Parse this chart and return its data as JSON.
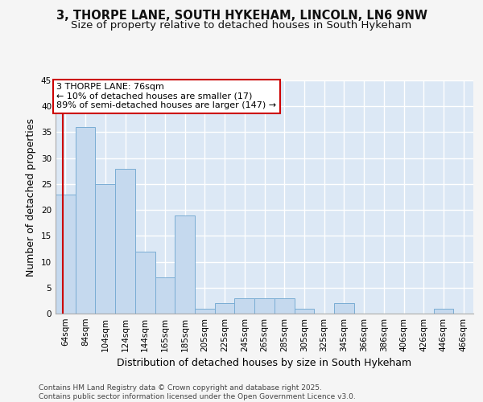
{
  "title": "3, THORPE LANE, SOUTH HYKEHAM, LINCOLN, LN6 9NW",
  "subtitle": "Size of property relative to detached houses in South Hykeham",
  "xlabel": "Distribution of detached houses by size in South Hykeham",
  "ylabel": "Number of detached properties",
  "categories": [
    "64sqm",
    "84sqm",
    "104sqm",
    "124sqm",
    "144sqm",
    "165sqm",
    "185sqm",
    "205sqm",
    "225sqm",
    "245sqm",
    "265sqm",
    "285sqm",
    "305sqm",
    "325sqm",
    "345sqm",
    "366sqm",
    "386sqm",
    "406sqm",
    "426sqm",
    "446sqm",
    "466sqm"
  ],
  "values": [
    23,
    36,
    25,
    28,
    12,
    7,
    19,
    1,
    2,
    3,
    3,
    3,
    1,
    0,
    2,
    0,
    0,
    0,
    0,
    1,
    0
  ],
  "bar_color": "#c5d9ee",
  "bar_edge_color": "#7aadd4",
  "background_color": "#dce8f5",
  "grid_color": "#ffffff",
  "annotation_line1": "3 THORPE LANE: 76sqm",
  "annotation_line2": "← 10% of detached houses are smaller (17)",
  "annotation_line3": "89% of semi-detached houses are larger (147) →",
  "annotation_box_color": "#ffffff",
  "annotation_box_edge": "#cc0000",
  "vline_color": "#cc0000",
  "ylim": [
    0,
    45
  ],
  "yticks": [
    0,
    5,
    10,
    15,
    20,
    25,
    30,
    35,
    40,
    45
  ],
  "footer": "Contains HM Land Registry data © Crown copyright and database right 2025.\nContains public sector information licensed under the Open Government Licence v3.0.",
  "title_fontsize": 10.5,
  "subtitle_fontsize": 9.5,
  "axis_label_fontsize": 9,
  "tick_fontsize": 7.5,
  "annotation_fontsize": 8,
  "footer_fontsize": 6.5
}
